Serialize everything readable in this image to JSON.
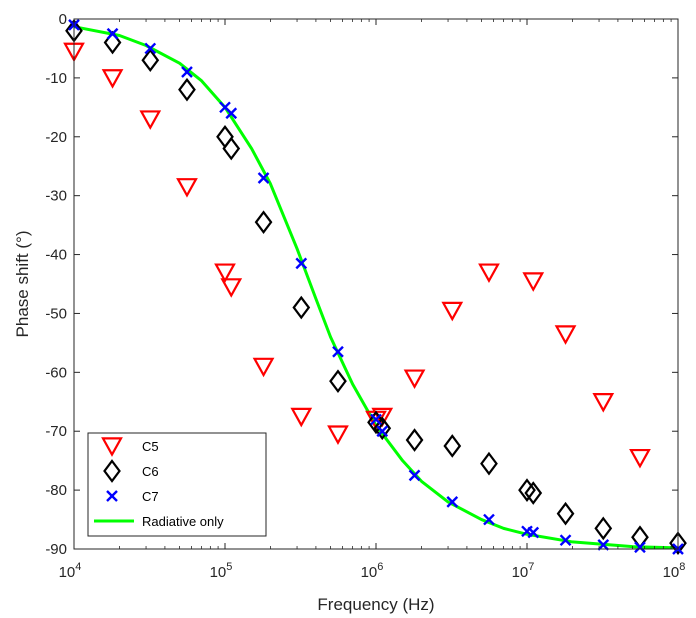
{
  "chart_data": {
    "type": "scatter",
    "title": "",
    "xlabel": "Frequency (Hz)",
    "ylabel": "Phase shift (°)",
    "xscale": "log",
    "xlim": [
      10000,
      100000000
    ],
    "ylim": [
      -90,
      0
    ],
    "xticks": [
      {
        "value": 10000,
        "base": "10",
        "exp": "4"
      },
      {
        "value": 100000,
        "base": "10",
        "exp": "5"
      },
      {
        "value": 1000000,
        "base": "10",
        "exp": "6"
      },
      {
        "value": 10000000,
        "base": "10",
        "exp": "7"
      },
      {
        "value": 100000000,
        "base": "10",
        "exp": "8"
      }
    ],
    "yticks": [
      {
        "value": 0,
        "label": "0"
      },
      {
        "value": -10,
        "label": "-10"
      },
      {
        "value": -20,
        "label": "-20"
      },
      {
        "value": -30,
        "label": "-30"
      },
      {
        "value": -40,
        "label": "-40"
      },
      {
        "value": -50,
        "label": "-50"
      },
      {
        "value": -60,
        "label": "-60"
      },
      {
        "value": -70,
        "label": "-70"
      },
      {
        "value": -80,
        "label": "-80"
      },
      {
        "value": -90,
        "label": "-90"
      }
    ],
    "grid": false,
    "legend_position": "bottom-left",
    "series": [
      {
        "name": "C5",
        "marker": "triangle-down",
        "color": "#ff0000",
        "points": [
          [
            10000,
            -5.5
          ],
          [
            18000,
            -10
          ],
          [
            32000,
            -17
          ],
          [
            56000,
            -28.5
          ],
          [
            100000,
            -43
          ],
          [
            110000,
            -45.5
          ],
          [
            180000,
            -59
          ],
          [
            320000,
            -67.5
          ],
          [
            560000,
            -70.5
          ],
          [
            1000000,
            -68
          ],
          [
            1100000,
            -67.5
          ],
          [
            1800000,
            -61
          ],
          [
            3200000,
            -49.5
          ],
          [
            5600000,
            -43
          ],
          [
            11000000,
            -44.5
          ],
          [
            18000000,
            -53.5
          ],
          [
            32000000,
            -65
          ],
          [
            56000000,
            -74.5
          ]
        ]
      },
      {
        "name": "C6",
        "marker": "diamond",
        "color": "#000000",
        "points": [
          [
            10000,
            -2
          ],
          [
            18000,
            -4
          ],
          [
            32000,
            -7
          ],
          [
            56000,
            -12
          ],
          [
            100000,
            -20
          ],
          [
            110000,
            -22
          ],
          [
            180000,
            -34.5
          ],
          [
            320000,
            -49
          ],
          [
            560000,
            -61.5
          ],
          [
            1000000,
            -68.5
          ],
          [
            1100000,
            -69.5
          ],
          [
            1800000,
            -71.5
          ],
          [
            3200000,
            -72.5
          ],
          [
            5600000,
            -75.5
          ],
          [
            10000000,
            -80
          ],
          [
            11000000,
            -80.5
          ],
          [
            18000000,
            -84
          ],
          [
            32000000,
            -86.5
          ],
          [
            56000000,
            -88
          ],
          [
            100000000,
            -89
          ]
        ]
      },
      {
        "name": "C7",
        "marker": "x",
        "color": "#0000ff",
        "points": [
          [
            10000,
            -1
          ],
          [
            18000,
            -2.5
          ],
          [
            32000,
            -5
          ],
          [
            56000,
            -9
          ],
          [
            100000,
            -15
          ],
          [
            110000,
            -16
          ],
          [
            180000,
            -27
          ],
          [
            320000,
            -41.5
          ],
          [
            560000,
            -56.5
          ],
          [
            1000000,
            -68
          ],
          [
            1100000,
            -70
          ],
          [
            1800000,
            -77.5
          ],
          [
            3200000,
            -82
          ],
          [
            5600000,
            -85
          ],
          [
            10000000,
            -87
          ],
          [
            11000000,
            -87.2
          ],
          [
            18000000,
            -88.5
          ],
          [
            32000000,
            -89.3
          ],
          [
            56000000,
            -89.7
          ],
          [
            100000000,
            -90
          ]
        ]
      },
      {
        "name": "Radiative only",
        "marker": "line",
        "color": "#00ff00",
        "points": [
          [
            10000,
            -1.3
          ],
          [
            20000,
            -2.8
          ],
          [
            30000,
            -4.5
          ],
          [
            50000,
            -7.5
          ],
          [
            70000,
            -10.5
          ],
          [
            100000,
            -15
          ],
          [
            150000,
            -22
          ],
          [
            200000,
            -28
          ],
          [
            300000,
            -39
          ],
          [
            400000,
            -47.5
          ],
          [
            500000,
            -54
          ],
          [
            700000,
            -62
          ],
          [
            1000000,
            -69
          ],
          [
            1500000,
            -75
          ],
          [
            2000000,
            -78.5
          ],
          [
            3000000,
            -82
          ],
          [
            5000000,
            -85
          ],
          [
            7000000,
            -86.5
          ],
          [
            10000000,
            -87.5
          ],
          [
            20000000,
            -88.8
          ],
          [
            50000000,
            -89.6
          ],
          [
            100000000,
            -89.8
          ]
        ]
      }
    ]
  }
}
